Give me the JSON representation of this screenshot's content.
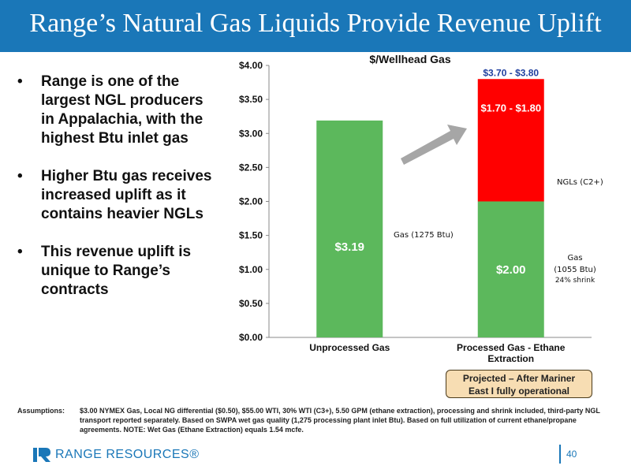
{
  "header": {
    "title": "Range’s Natural Gas Liquids Provide Revenue Uplift"
  },
  "bullets": [
    "Range is one of the largest NGL producers in Appalachia, with the highest Btu inlet gas",
    "Higher Btu gas receives increased uplift as it contains heavier NGLs",
    "This revenue uplift is unique to Range’s contracts"
  ],
  "chart_data": {
    "type": "bar",
    "title": "$/Wellhead Gas",
    "xlabel": "",
    "ylabel": "",
    "ylim": [
      0,
      4
    ],
    "yticks": [
      "$0.00",
      "$0.50",
      "$1.00",
      "$1.50",
      "$2.00",
      "$2.50",
      "$3.00",
      "$3.50",
      "$4.00"
    ],
    "stacked": true,
    "categories": [
      "Unprocessed Gas",
      "Processed Gas - Ethane Extraction"
    ],
    "series": [
      {
        "name": "Gas",
        "values": [
          3.19,
          2.0
        ],
        "color": "#5cb85c",
        "labels": [
          "$3.19",
          "$2.00"
        ]
      },
      {
        "name": "NGLs (C2+)",
        "values": [
          0,
          1.8
        ],
        "color": "#ff0000",
        "labels": [
          "",
          "$1.70 - $1.80"
        ]
      }
    ],
    "total_label": "$3.70 - $3.80",
    "annotations": {
      "gas_unprocessed": "Gas (1275 Btu)",
      "ngl": "NGLs (C2+)",
      "gas_processed_line1": "Gas",
      "gas_processed_line2": "(1055 Btu)",
      "gas_processed_line3": "24% shrink"
    },
    "colors": {
      "gas": "#5cb85c",
      "ngl": "#ff0000",
      "arrow": "#a6a6a6",
      "total_label": "#1f3f9f"
    }
  },
  "projected_box": {
    "line1": "Projected – After Mariner",
    "line2": "East I fully operational"
  },
  "assumptions": {
    "label": "Assumptions:",
    "text": "$3.00 NYMEX Gas, Local NG differential ($0.50), $55.00 WTI, 30% WTI (C3+), 5.50 GPM (ethane extraction), processing and shrink included, third-party NGL transport reported separately.  Based on SWPA wet gas quality (1,275 processing plant inlet Btu).  Based on full utilization of current ethane/propane agreements.  NOTE: Wet Gas (Ethane Extraction) equals 1.54 mcfe."
  },
  "footer": {
    "logo_text": "RANGE RESOURCES®",
    "page_number": "40",
    "brand_color": "#1a77b8"
  }
}
